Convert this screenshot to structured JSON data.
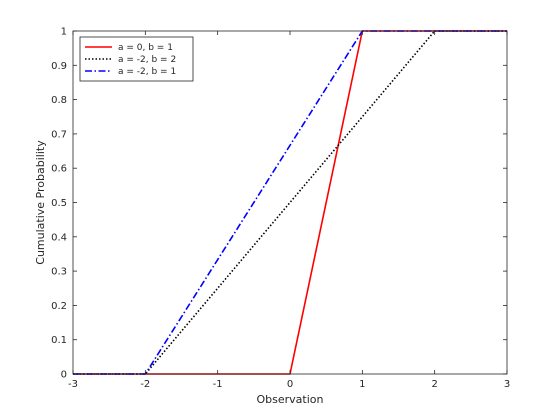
{
  "chart_data": {
    "type": "line",
    "title": "",
    "xlabel": "Observation",
    "ylabel": "Cumulative Probability",
    "xlim": [
      -3,
      3
    ],
    "ylim": [
      0,
      1
    ],
    "xticks": [
      -3,
      -2,
      -1,
      0,
      1,
      2,
      3
    ],
    "xtick_labels": [
      "-3",
      "-2",
      "-1",
      "0",
      "1",
      "2",
      "3"
    ],
    "yticks": [
      0,
      0.1,
      0.2,
      0.3,
      0.4,
      0.5,
      0.6,
      0.7,
      0.8,
      0.9,
      1
    ],
    "ytick_labels": [
      "0",
      "0.1",
      "0.2",
      "0.3",
      "0.4",
      "0.5",
      "0.6",
      "0.7",
      "0.8",
      "0.9",
      "1"
    ],
    "grid": false,
    "legend_position": "top-left",
    "series": [
      {
        "name": "a = 0, b = 1",
        "color": "#ff0000",
        "style": "solid",
        "x": [
          -3,
          0,
          1,
          3
        ],
        "y": [
          0,
          0,
          1,
          1
        ]
      },
      {
        "name": "a = -2, b = 2",
        "color": "#000000",
        "style": "dotted",
        "x": [
          -3,
          -2,
          2,
          3
        ],
        "y": [
          0,
          0,
          1,
          1
        ]
      },
      {
        "name": "a = -2, b = 1",
        "color": "#0000ff",
        "style": "dashdot",
        "x": [
          -3,
          -2,
          1,
          3
        ],
        "y": [
          0,
          0,
          1,
          1
        ]
      }
    ]
  }
}
